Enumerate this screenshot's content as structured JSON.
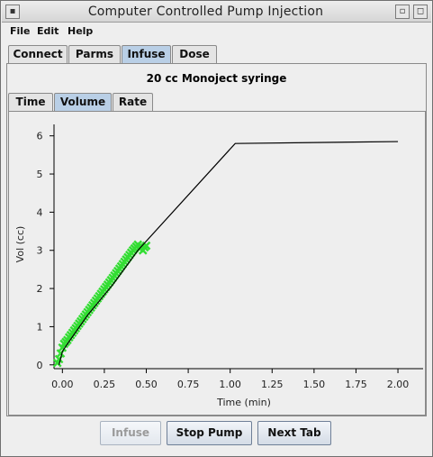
{
  "window": {
    "title": "Computer Controlled Pump Injection"
  },
  "menu": [
    "File",
    "Edit",
    "Help"
  ],
  "main_tabs": [
    {
      "label": "Connect",
      "active": false
    },
    {
      "label": "Parms",
      "active": false
    },
    {
      "label": "Infuse",
      "active": true
    },
    {
      "label": "Dose",
      "active": false
    }
  ],
  "syringe_label": "20 cc Monoject syringe",
  "sub_tabs": [
    {
      "label": "Time",
      "active": false
    },
    {
      "label": "Volume",
      "active": true
    },
    {
      "label": "Rate",
      "active": false
    }
  ],
  "chart_data": {
    "type": "line",
    "xlabel": "Time (min)",
    "ylabel": "Vol (cc)",
    "xlim": [
      -0.05,
      2.15
    ],
    "ylim": [
      -0.1,
      6.3
    ],
    "x_ticks": [
      "0.00",
      "0.25",
      "0.50",
      "0.75",
      "1.00",
      "1.25",
      "1.50",
      "1.75",
      "2.00"
    ],
    "x_tick_values": [
      0,
      0.25,
      0.5,
      0.75,
      1.0,
      1.25,
      1.5,
      1.75,
      2.0
    ],
    "y_ticks": [
      "0",
      "1",
      "2",
      "3",
      "4",
      "5",
      "6"
    ],
    "y_tick_values": [
      0,
      1,
      2,
      3,
      4,
      5,
      6
    ],
    "series": [
      {
        "kind": "line",
        "color": "#000000",
        "x": [
          -0.02,
          0.0,
          0.03,
          0.15,
          0.3,
          0.45,
          1.03,
          2.0
        ],
        "y": [
          0.0,
          0.35,
          0.55,
          1.3,
          2.1,
          3.0,
          5.8,
          5.85
        ]
      },
      {
        "kind": "markers",
        "color": "#33dd33",
        "marker": "x",
        "x": [
          -0.03,
          -0.02,
          -0.01,
          0.0,
          0.01,
          0.02,
          0.03,
          0.04,
          0.05,
          0.06,
          0.07,
          0.08,
          0.09,
          0.1,
          0.11,
          0.12,
          0.13,
          0.14,
          0.15,
          0.16,
          0.17,
          0.18,
          0.19,
          0.2,
          0.21,
          0.22,
          0.23,
          0.24,
          0.25,
          0.26,
          0.27,
          0.28,
          0.29,
          0.3,
          0.31,
          0.32,
          0.33,
          0.34,
          0.35,
          0.36,
          0.37,
          0.38,
          0.39,
          0.4,
          0.41,
          0.42,
          0.43,
          0.44,
          0.45,
          0.46,
          0.47,
          0.48,
          0.49,
          0.5
        ],
        "y": [
          0.05,
          0.15,
          0.3,
          0.45,
          0.55,
          0.6,
          0.65,
          0.72,
          0.78,
          0.84,
          0.9,
          0.96,
          1.02,
          1.08,
          1.14,
          1.2,
          1.26,
          1.32,
          1.38,
          1.44,
          1.5,
          1.56,
          1.62,
          1.68,
          1.74,
          1.8,
          1.86,
          1.92,
          1.98,
          2.04,
          2.1,
          2.16,
          2.22,
          2.28,
          2.34,
          2.4,
          2.46,
          2.52,
          2.58,
          2.64,
          2.7,
          2.76,
          2.82,
          2.88,
          2.94,
          3.0,
          3.05,
          3.1,
          3.15,
          3.05,
          3.1,
          3.0,
          3.08,
          3.12
        ]
      }
    ]
  },
  "buttons": {
    "infuse": "Infuse",
    "stop": "Stop Pump",
    "next": "Next Tab"
  },
  "titlebar_icons": [
    "window-menu-icon",
    "minimize-icon",
    "maximize-icon"
  ]
}
